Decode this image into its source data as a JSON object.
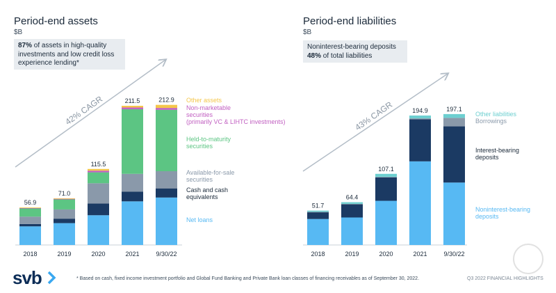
{
  "assets_panel": {
    "title": "Period-end assets",
    "unit": "$B",
    "callout_bold": "87%",
    "callout_text": " of assets in high-quality investments and low credit loss experience lending*",
    "cagr": "42% CAGR"
  },
  "liabilities_panel": {
    "title": "Period-end liabilities",
    "unit": "$B",
    "callout_line1": "Noninterest-bearing deposits",
    "callout_bold": "48%",
    "callout_text": " of total liabilities",
    "cagr": "43% CAGR"
  },
  "footer": {
    "logo": "svb",
    "footnote": "* Based on cash, fixed income investment portfolio and Global Fund Banking and Private Bank loan classes of financing receivables as of September 30, 2022.",
    "page_ref": "Q3 2022 FINANCIAL HIGHLIGHTS"
  },
  "chart_data": [
    {
      "type": "bar",
      "stacked": true,
      "title": "Period-end assets",
      "ylabel": "$B",
      "categories": [
        "2018",
        "2019",
        "2020",
        "2021",
        "9/30/22"
      ],
      "totals": [
        "56.9",
        "71.0",
        "115.5",
        "211.5",
        "212.9"
      ],
      "total_values": [
        56.9,
        71.0,
        115.5,
        211.5,
        212.9
      ],
      "series": [
        {
          "name": "Net loans",
          "color": "#57b9f3",
          "values": [
            28.3,
            33.2,
            45.2,
            66.3,
            72.1
          ]
        },
        {
          "name": "Cash and cash equivalents",
          "color": "#1b3a63",
          "values": [
            3.6,
            6.8,
            17.7,
            14.6,
            13.9
          ]
        },
        {
          "name": "Available-for-sale securities",
          "color": "#8a99aa",
          "values": [
            11.2,
            14.0,
            30.9,
            27.2,
            26.1
          ]
        },
        {
          "name": "Held-to-maturity securities",
          "color": "#5cc583",
          "values": [
            12.7,
            15.5,
            16.6,
            98.2,
            93.3
          ]
        },
        {
          "name": "Non-marketable securities (primarily VC & LIHTC investments)",
          "color": "#c15fc1",
          "values": [
            0.5,
            0.6,
            2.5,
            2.6,
            2.8
          ]
        },
        {
          "name": "Other assets",
          "color": "#f4c64a",
          "values": [
            0.6,
            0.9,
            2.6,
            2.6,
            4.7
          ]
        }
      ],
      "legend": [
        {
          "label": "Other assets",
          "color": "#f4c64a"
        },
        {
          "label": "Non-marketable securities (primarily VC & LIHTC investments)",
          "color": "#c15fc1"
        },
        {
          "label": "Held-to-maturity securities",
          "color": "#5cc583"
        },
        {
          "label": "Available-for-sale securities",
          "color": "#8a99aa"
        },
        {
          "label": "Cash and cash equivalents",
          "color": "#1b3a63"
        },
        {
          "label": "Net loans",
          "color": "#57b9f3"
        }
      ],
      "ylim": [
        0,
        230
      ]
    },
    {
      "type": "bar",
      "stacked": true,
      "title": "Period-end liabilities",
      "ylabel": "$B",
      "categories": [
        "2018",
        "2019",
        "2020",
        "2021",
        "9/30/22"
      ],
      "totals": [
        "51.7",
        "64.4",
        "107.1",
        "194.9",
        "197.1"
      ],
      "total_values": [
        51.7,
        64.4,
        107.1,
        194.9,
        197.1
      ],
      "series": [
        {
          "name": "Noninterest-bearing deposits",
          "color": "#57b9f3",
          "values": [
            39.1,
            41.4,
            66.5,
            125.9,
            94.0
          ]
        },
        {
          "name": "Interest-bearing deposits",
          "color": "#1b3a63",
          "values": [
            10.2,
            19.9,
            35.5,
            63.4,
            84.6
          ]
        },
        {
          "name": "Borrowings",
          "color": "#8a99aa",
          "values": [
            0.6,
            0.6,
            0.5,
            1.3,
            12.8
          ]
        },
        {
          "name": "Other liabilities",
          "color": "#6dcfd0",
          "values": [
            1.8,
            2.5,
            4.6,
            4.3,
            5.7
          ]
        }
      ],
      "legend": [
        {
          "label": "Other liabilities",
          "color": "#6dcfd0"
        },
        {
          "label": "Borrowings",
          "color": "#8a99aa"
        },
        {
          "label": "Interest-bearing deposits",
          "color": "#1b3a63"
        },
        {
          "label": "Noninterest-bearing deposits",
          "color": "#57b9f3"
        }
      ],
      "ylim": [
        0,
        230
      ]
    }
  ]
}
